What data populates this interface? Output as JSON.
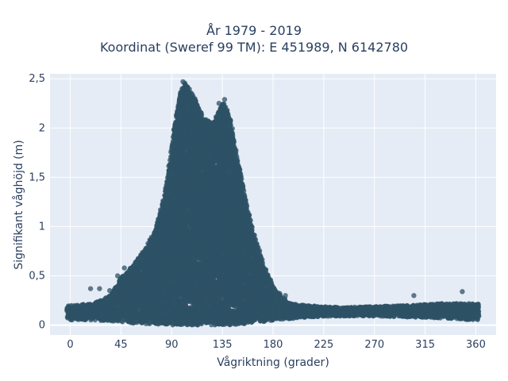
{
  "chart_data": {
    "type": "scatter",
    "title": "År 1979 - 2019",
    "subtitle": "Koordinat (Sweref 99 TM): E 451989, N 6142780",
    "xlabel": "Vågriktning (grader)",
    "ylabel": "Signifikant våghöjd (m)",
    "xlim": [
      -18,
      378
    ],
    "ylim": [
      -0.1,
      2.55
    ],
    "xticks": [
      0,
      45,
      90,
      135,
      180,
      225,
      270,
      315,
      360
    ],
    "xtick_labels": [
      "0",
      "45",
      "90",
      "135",
      "180",
      "225",
      "270",
      "315",
      "360"
    ],
    "yticks": [
      0,
      0.5,
      1,
      1.5,
      2,
      2.5
    ],
    "ytick_labels": [
      "0",
      "0,5",
      "1",
      "1,5",
      "2",
      "2,5"
    ],
    "grid": true,
    "marker_color": "#2e5266",
    "plot_background": "#e5ecf6",
    "envelope": {
      "direction": [
        0,
        20,
        35,
        45,
        55,
        65,
        75,
        85,
        92,
        98,
        102,
        110,
        118,
        126,
        132,
        136,
        142,
        150,
        160,
        172,
        182,
        195,
        210,
        240,
        270,
        300,
        330,
        360
      ],
      "max_height": [
        0.2,
        0.22,
        0.3,
        0.48,
        0.6,
        0.75,
        0.95,
        1.4,
        2.0,
        2.38,
        2.46,
        2.32,
        2.1,
        2.05,
        2.18,
        2.27,
        2.1,
        1.6,
        1.05,
        0.6,
        0.35,
        0.22,
        0.2,
        0.18,
        0.19,
        0.2,
        0.22,
        0.22
      ],
      "min_height": [
        0.05,
        0.05,
        0.04,
        0.03,
        0.02,
        0.01,
        0.01,
        0.0,
        0.0,
        0.0,
        0.0,
        0.0,
        0.0,
        0.0,
        0.0,
        0.0,
        0.0,
        0.01,
        0.02,
        0.03,
        0.05,
        0.06,
        0.08,
        0.09,
        0.09,
        0.08,
        0.07,
        0.05
      ]
    },
    "outliers": [
      {
        "x": 18,
        "y": 0.37
      },
      {
        "x": 26,
        "y": 0.37
      },
      {
        "x": 35,
        "y": 0.35
      },
      {
        "x": 42,
        "y": 0.5
      },
      {
        "x": 48,
        "y": 0.58
      },
      {
        "x": 95,
        "y": 1.95
      },
      {
        "x": 100,
        "y": 2.47
      },
      {
        "x": 132,
        "y": 2.25
      },
      {
        "x": 137,
        "y": 2.29
      },
      {
        "x": 186,
        "y": 0.32
      },
      {
        "x": 191,
        "y": 0.3
      },
      {
        "x": 305,
        "y": 0.3
      },
      {
        "x": 348,
        "y": 0.34
      }
    ]
  }
}
